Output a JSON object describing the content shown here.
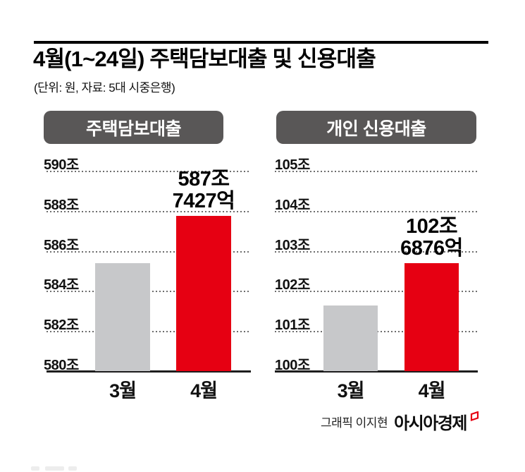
{
  "title": "4월(1~24일) 주택담보대출 및 신용대출",
  "subtitle": "(단위: 원, 자료: 5대 시중은행)",
  "footer": {
    "credit": "그래픽 이지현",
    "brand": "아시아경제",
    "logo_mark": "asiae-flag-icon"
  },
  "colors": {
    "bar_march": "#c7c8ca",
    "bar_april": "#e60012",
    "header_pill": "#595757",
    "grid": "#6e6e6e",
    "axis": "#1d1d1d",
    "text": "#111111"
  },
  "chart_data": [
    {
      "type": "bar",
      "title": "주택담보대출",
      "categories": [
        "3월",
        "4월"
      ],
      "values": [
        585.4,
        587.7427
      ],
      "unit": "조 원",
      "ylim": [
        580,
        590
      ],
      "yticks": [
        {
          "value": 590,
          "label": "590조"
        },
        {
          "value": 588,
          "label": "588조"
        },
        {
          "value": 586,
          "label": "586조"
        },
        {
          "value": 584,
          "label": "584조"
        },
        {
          "value": 582,
          "label": "582조"
        },
        {
          "value": 580,
          "label": "580조"
        }
      ],
      "grid": true,
      "legend": "none",
      "bar_colors": [
        "#c7c8ca",
        "#e60012"
      ],
      "annotation": {
        "category": "4월",
        "lines": [
          "587조",
          "7427억"
        ]
      }
    },
    {
      "type": "bar",
      "title": "개인 신용대출",
      "categories": [
        "3월",
        "4월"
      ],
      "values": [
        101.64,
        102.6876
      ],
      "unit": "조 원",
      "ylim": [
        100,
        105
      ],
      "yticks": [
        {
          "value": 105,
          "label": "105조"
        },
        {
          "value": 104,
          "label": "104조"
        },
        {
          "value": 103,
          "label": "103조"
        },
        {
          "value": 102,
          "label": "102조"
        },
        {
          "value": 101,
          "label": "101조"
        },
        {
          "value": 100,
          "label": "100조"
        }
      ],
      "grid": true,
      "legend": "none",
      "bar_colors": [
        "#c7c8ca",
        "#e60012"
      ],
      "annotation": {
        "category": "4월",
        "lines": [
          "102조",
          "6876억"
        ]
      }
    }
  ]
}
